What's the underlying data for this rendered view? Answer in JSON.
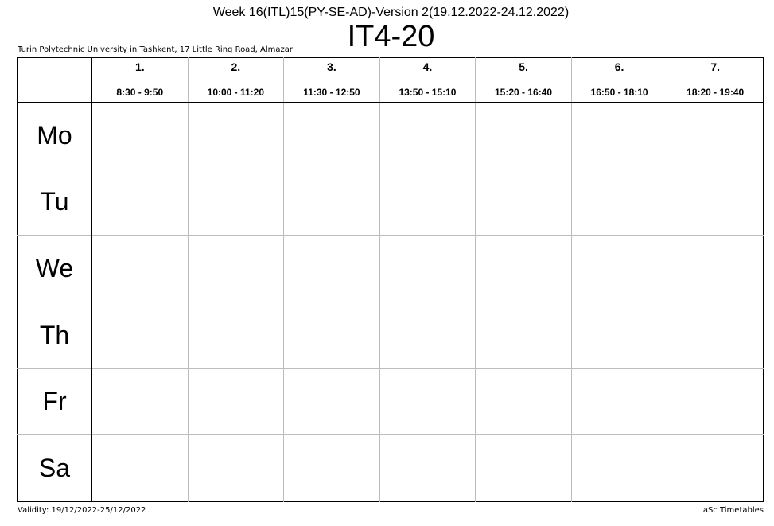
{
  "header": {
    "week_title": "Week 16(ITL)15(PY-SE-AD)-Version 2(19.12.2022-24.12.2022)",
    "class_name": "IT4-20",
    "school": "Turin Polytechnic University in Tashkent, 17 Little Ring Road, Almazar"
  },
  "periods": [
    {
      "number": "1.",
      "time": "8:30 - 9:50"
    },
    {
      "number": "2.",
      "time": "10:00 - 11:20"
    },
    {
      "number": "3.",
      "time": "11:30 - 12:50"
    },
    {
      "number": "4.",
      "time": "13:50 - 15:10"
    },
    {
      "number": "5.",
      "time": "15:20 - 16:40"
    },
    {
      "number": "6.",
      "time": "16:50 - 18:10"
    },
    {
      "number": "7.",
      "time": "18:20 - 19:40"
    }
  ],
  "days": [
    "Mo",
    "Tu",
    "We",
    "Th",
    "Fr",
    "Sa"
  ],
  "footer": {
    "validity": "Validity: 19/12/2022-25/12/2022",
    "brand": "aSc Timetables"
  }
}
